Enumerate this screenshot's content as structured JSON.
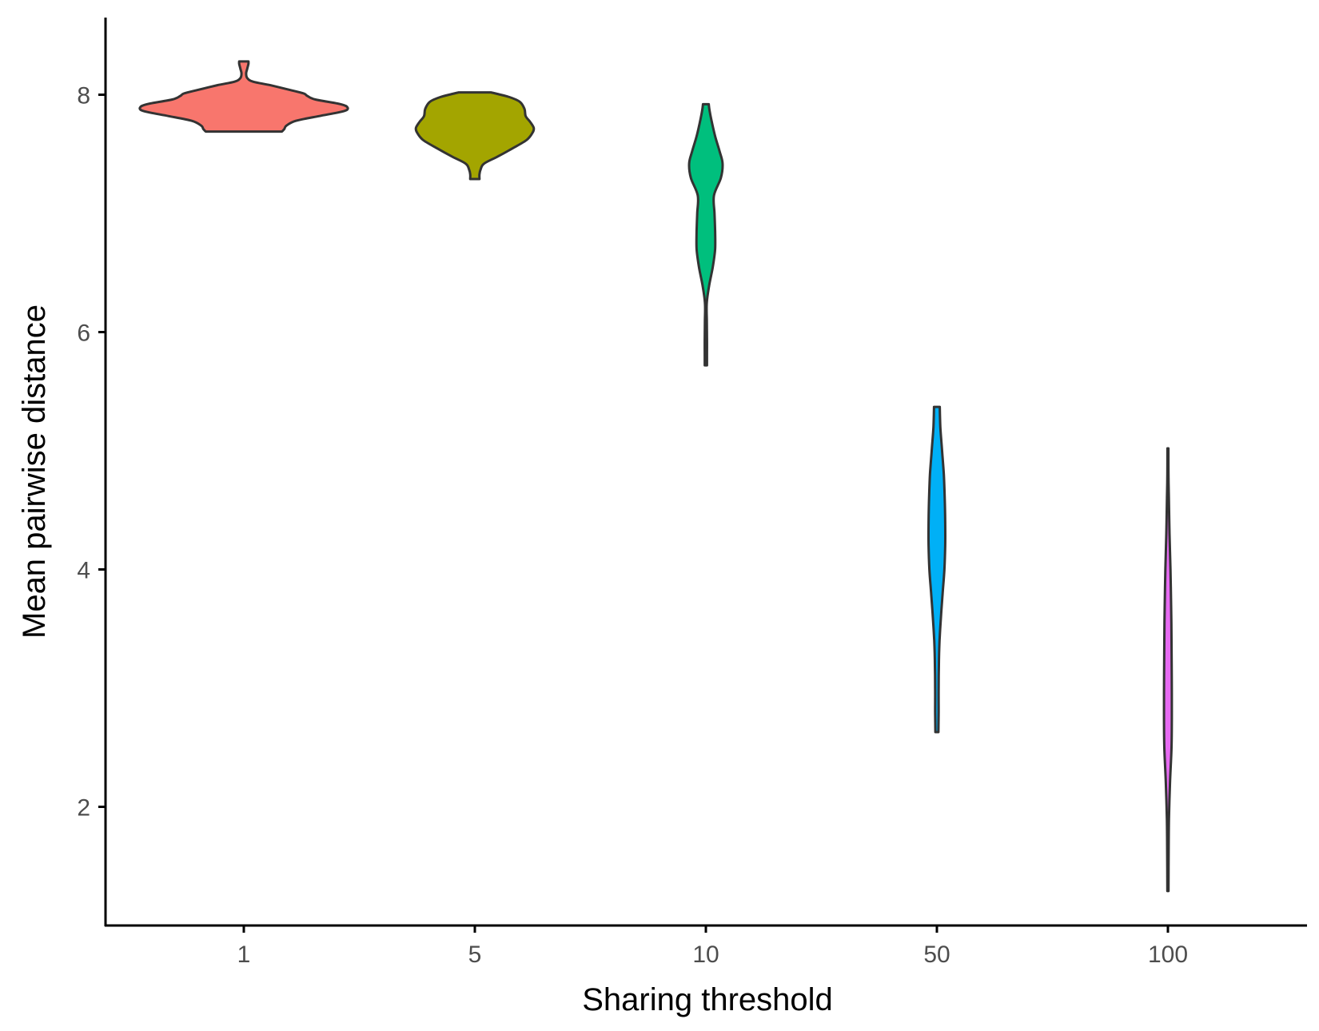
{
  "chart_data": {
    "type": "violin",
    "title": "",
    "xlabel": "Sharing threshold",
    "ylabel": "Mean pairwise distance",
    "categories": [
      "1",
      "5",
      "10",
      "50",
      "100"
    ],
    "yticks": [
      2,
      4,
      6,
      8
    ],
    "ylim": [
      1.0,
      8.65
    ],
    "grid": false,
    "legend": "none",
    "series": [
      {
        "category": "1",
        "color": "#F8766D",
        "min": 7.69,
        "max": 8.28,
        "profile": [
          [
            7.69,
            0.33
          ],
          [
            7.71,
            0.35
          ],
          [
            7.74,
            0.37
          ],
          [
            7.78,
            0.45
          ],
          [
            7.82,
            0.65
          ],
          [
            7.86,
            0.86
          ],
          [
            7.89,
            0.9
          ],
          [
            7.92,
            0.84
          ],
          [
            7.96,
            0.62
          ],
          [
            7.99,
            0.55
          ],
          [
            8.01,
            0.52
          ],
          [
            8.04,
            0.4
          ],
          [
            8.08,
            0.23
          ],
          [
            8.11,
            0.08
          ],
          [
            8.14,
            0.03
          ],
          [
            8.18,
            0.02
          ],
          [
            8.22,
            0.03
          ],
          [
            8.26,
            0.04
          ],
          [
            8.28,
            0.04
          ]
        ]
      },
      {
        "category": "5",
        "color": "#A3A500",
        "min": 7.29,
        "max": 8.02,
        "profile": [
          [
            7.29,
            0.04
          ],
          [
            7.33,
            0.04
          ],
          [
            7.37,
            0.05
          ],
          [
            7.42,
            0.08
          ],
          [
            7.48,
            0.2
          ],
          [
            7.55,
            0.33
          ],
          [
            7.62,
            0.45
          ],
          [
            7.68,
            0.5
          ],
          [
            7.72,
            0.51
          ],
          [
            7.77,
            0.48
          ],
          [
            7.82,
            0.44
          ],
          [
            7.88,
            0.43
          ],
          [
            7.94,
            0.39
          ],
          [
            7.98,
            0.3
          ],
          [
            8.01,
            0.18
          ],
          [
            8.02,
            0.14
          ]
        ]
      },
      {
        "category": "10",
        "color": "#00BF7D",
        "min": 5.72,
        "max": 7.92,
        "profile": [
          [
            5.72,
            0.01
          ],
          [
            5.8,
            0.01
          ],
          [
            5.95,
            0.01
          ],
          [
            6.1,
            0.008
          ],
          [
            6.25,
            0.008
          ],
          [
            6.4,
            0.03
          ],
          [
            6.55,
            0.06
          ],
          [
            6.7,
            0.08
          ],
          [
            6.85,
            0.08
          ],
          [
            7.0,
            0.075
          ],
          [
            7.15,
            0.07
          ],
          [
            7.3,
            0.13
          ],
          [
            7.42,
            0.145
          ],
          [
            7.52,
            0.12
          ],
          [
            7.65,
            0.08
          ],
          [
            7.8,
            0.045
          ],
          [
            7.88,
            0.03
          ],
          [
            7.92,
            0.025
          ]
        ]
      },
      {
        "category": "50",
        "color": "#00B0F6",
        "min": 2.63,
        "max": 5.37,
        "profile": [
          [
            2.63,
            0.013
          ],
          [
            2.8,
            0.015
          ],
          [
            3.0,
            0.015
          ],
          [
            3.2,
            0.017
          ],
          [
            3.4,
            0.023
          ],
          [
            3.6,
            0.035
          ],
          [
            3.8,
            0.05
          ],
          [
            4.0,
            0.065
          ],
          [
            4.2,
            0.072
          ],
          [
            4.4,
            0.072
          ],
          [
            4.6,
            0.068
          ],
          [
            4.8,
            0.06
          ],
          [
            5.0,
            0.045
          ],
          [
            5.2,
            0.03
          ],
          [
            5.37,
            0.025
          ]
        ]
      },
      {
        "category": "100",
        "color": "#E76BF3",
        "min": 1.29,
        "max": 5.02,
        "profile": [
          [
            1.29,
            0.005
          ],
          [
            1.6,
            0.006
          ],
          [
            1.9,
            0.009
          ],
          [
            2.2,
            0.018
          ],
          [
            2.5,
            0.031
          ],
          [
            2.8,
            0.034
          ],
          [
            3.1,
            0.033
          ],
          [
            3.4,
            0.031
          ],
          [
            3.7,
            0.028
          ],
          [
            4.0,
            0.022
          ],
          [
            4.3,
            0.014
          ],
          [
            4.6,
            0.008
          ],
          [
            4.8,
            0.005
          ],
          [
            5.02,
            0.004
          ]
        ]
      }
    ]
  }
}
